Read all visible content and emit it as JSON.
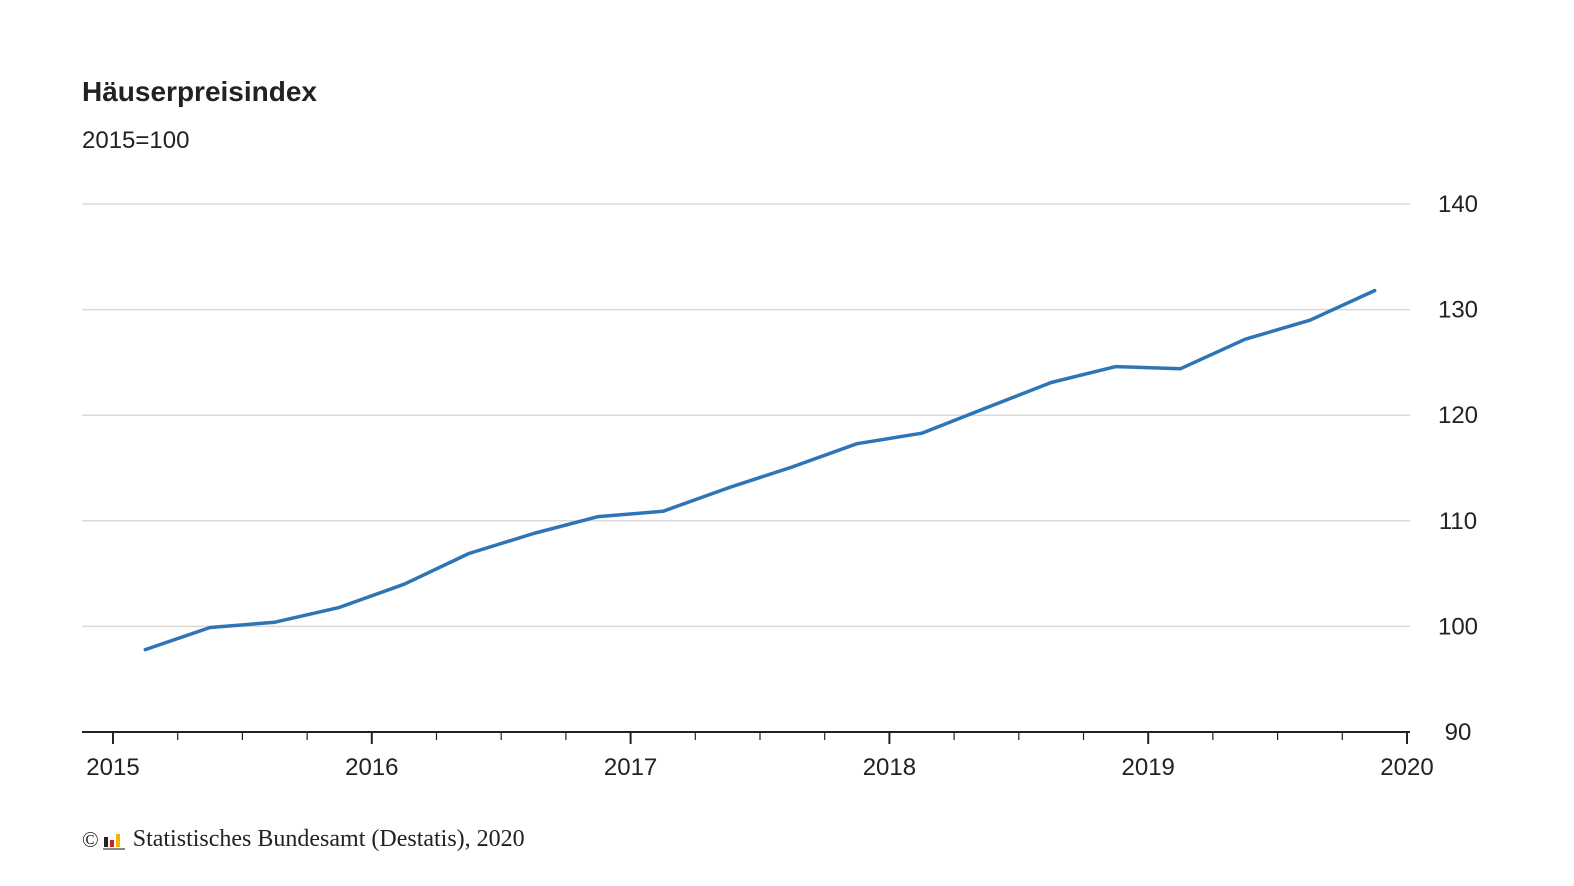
{
  "chart_data": {
    "type": "line",
    "title": "Häuserpreisindex",
    "subtitle": "2015=100",
    "xlabel": "",
    "ylabel": "",
    "x_range": [
      2015,
      2020
    ],
    "ylim": [
      90,
      140
    ],
    "y_ticks": [
      90,
      100,
      110,
      120,
      130,
      140
    ],
    "x_ticks": [
      2015,
      2016,
      2017,
      2018,
      2019,
      2020
    ],
    "grid": "horizontal",
    "y_axis_side": "right",
    "series": [
      {
        "color": "#2e75b6",
        "points": [
          {
            "x": 2015.125,
            "y": 97.8
          },
          {
            "x": 2015.375,
            "y": 99.9
          },
          {
            "x": 2015.625,
            "y": 100.4
          },
          {
            "x": 2015.875,
            "y": 101.8
          },
          {
            "x": 2016.125,
            "y": 104.0
          },
          {
            "x": 2016.375,
            "y": 106.9
          },
          {
            "x": 2016.625,
            "y": 108.8
          },
          {
            "x": 2016.875,
            "y": 110.4
          },
          {
            "x": 2017.125,
            "y": 110.9
          },
          {
            "x": 2017.375,
            "y": 113.1
          },
          {
            "x": 2017.625,
            "y": 115.1
          },
          {
            "x": 2017.875,
            "y": 117.3
          },
          {
            "x": 2018.125,
            "y": 118.3
          },
          {
            "x": 2018.375,
            "y": 120.7
          },
          {
            "x": 2018.625,
            "y": 123.1
          },
          {
            "x": 2018.875,
            "y": 124.6
          },
          {
            "x": 2019.125,
            "y": 124.4
          },
          {
            "x": 2019.375,
            "y": 127.2
          },
          {
            "x": 2019.625,
            "y": 129.0
          },
          {
            "x": 2019.875,
            "y": 131.8
          }
        ]
      }
    ]
  },
  "source": {
    "copyright": "©",
    "logo_icon": "destatis-logo-icon",
    "text": "Statistisches Bundesamt (Destatis), 2020"
  },
  "colors": {
    "line": "#2e75b6",
    "grid": "#d9d9d9",
    "axis": "#222222"
  }
}
